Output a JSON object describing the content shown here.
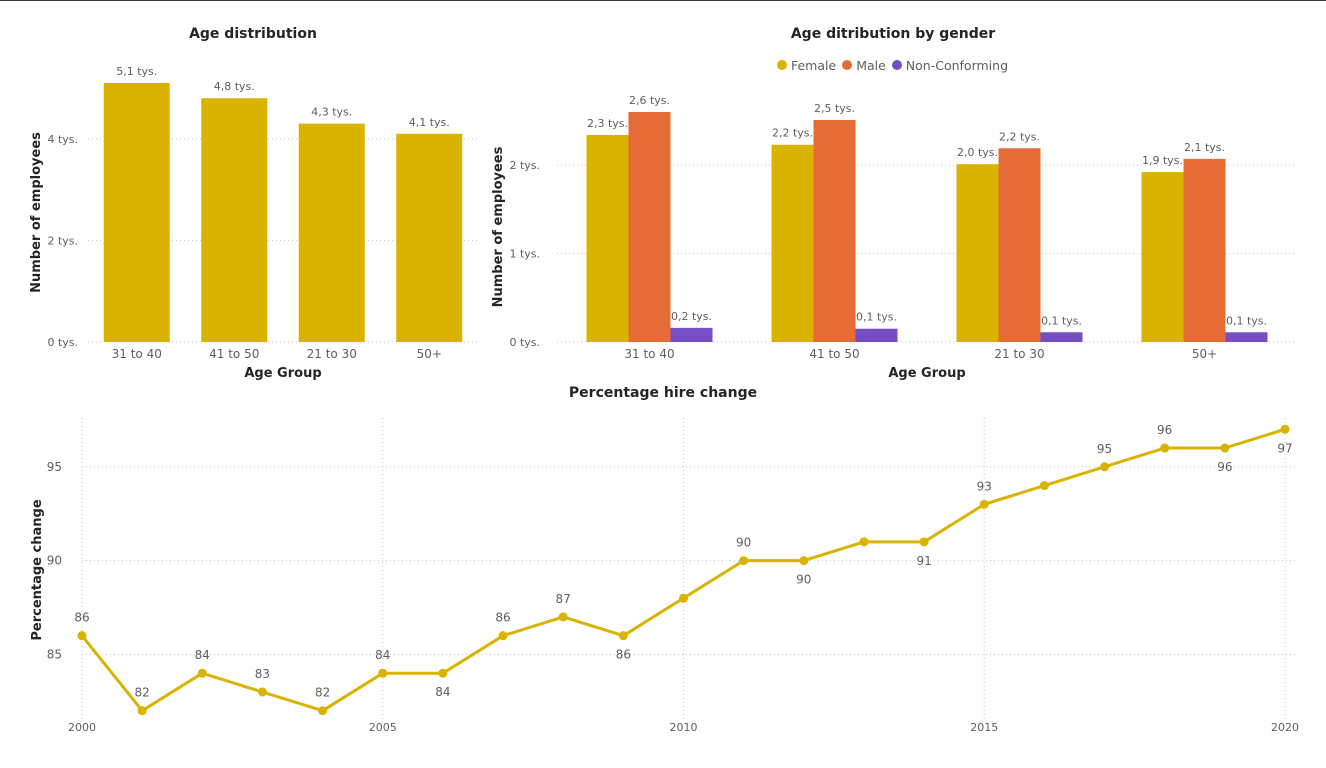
{
  "chart_data": [
    {
      "type": "bar",
      "title": "Age distribution",
      "xlabel": "Age Group",
      "ylabel": "Number of employees",
      "categories": [
        "31 to 40",
        "41 to 50",
        "21 to 30",
        "50+"
      ],
      "values": [
        5.1,
        4.8,
        4.3,
        4.1
      ],
      "value_labels": [
        "5,1 tys.",
        "4,8 tys.",
        "4,3 tys.",
        "4,1 tys."
      ],
      "ylim": [
        0,
        5.1
      ],
      "yticks": [
        0,
        2,
        4
      ],
      "ytick_labels": [
        "0 tys.",
        "2 tys.",
        "4 tys."
      ],
      "grid": true,
      "color": "#D9B300"
    },
    {
      "type": "bar",
      "title": "Age ditribution by gender",
      "xlabel": "Age Group",
      "ylabel": "Number of employees",
      "categories": [
        "31 to 40",
        "41 to 50",
        "21 to 30",
        "50+"
      ],
      "series": [
        {
          "name": "Female",
          "color": "#D9B300",
          "values": [
            2.34,
            2.23,
            2.01,
            1.92
          ],
          "labels": [
            "2,3 tys.",
            "2,2 tys.",
            "2,0 tys.",
            "1,9 tys."
          ]
        },
        {
          "name": "Male",
          "color": "#E66C37",
          "values": [
            2.6,
            2.51,
            2.19,
            2.07
          ],
          "labels": [
            "2,6 tys.",
            "2,5 tys.",
            "2,2 tys.",
            "2,1 tys."
          ]
        },
        {
          "name": "Non-Conforming",
          "color": "#744EC2",
          "values": [
            0.16,
            0.15,
            0.11,
            0.11
          ],
          "labels": [
            "0,2 tys.",
            "0,1 tys.",
            "0,1 tys.",
            "0,1 tys."
          ]
        }
      ],
      "ylim": [
        0,
        2.6
      ],
      "yticks": [
        0,
        1,
        2
      ],
      "ytick_labels": [
        "0 tys.",
        "1 tys.",
        "2 tys."
      ],
      "legend": "top-center",
      "grid": true
    },
    {
      "type": "line",
      "title": "Percentage hire change",
      "xlabel": "",
      "ylabel": "Percentage change",
      "x": [
        2000,
        2001,
        2002,
        2003,
        2004,
        2005,
        2006,
        2007,
        2008,
        2009,
        2010,
        2011,
        2012,
        2013,
        2014,
        2015,
        2016,
        2017,
        2018,
        2019,
        2020
      ],
      "y": [
        86,
        82,
        84,
        83,
        82,
        84,
        84,
        86,
        87,
        86,
        88,
        90,
        90,
        91,
        91,
        93,
        94,
        95,
        96,
        96,
        97
      ],
      "point_labels": [
        {
          "x": 2000,
          "text": "86",
          "pos": "above"
        },
        {
          "x": 2001,
          "text": "82",
          "pos": "above"
        },
        {
          "x": 2002,
          "text": "84",
          "pos": "above"
        },
        {
          "x": 2003,
          "text": "83",
          "pos": "above"
        },
        {
          "x": 2004,
          "text": "82",
          "pos": "above"
        },
        {
          "x": 2005,
          "text": "84",
          "pos": "above"
        },
        {
          "x": 2006,
          "text": "84",
          "pos": "below"
        },
        {
          "x": 2007,
          "text": "86",
          "pos": "above"
        },
        {
          "x": 2008,
          "text": "87",
          "pos": "above"
        },
        {
          "x": 2009,
          "text": "86",
          "pos": "below"
        },
        {
          "x": 2011,
          "text": "90",
          "pos": "above"
        },
        {
          "x": 2012,
          "text": "90",
          "pos": "below"
        },
        {
          "x": 2014,
          "text": "91",
          "pos": "below"
        },
        {
          "x": 2015,
          "text": "93",
          "pos": "above"
        },
        {
          "x": 2017,
          "text": "95",
          "pos": "above"
        },
        {
          "x": 2018,
          "text": "96",
          "pos": "above"
        },
        {
          "x": 2019,
          "text": "96",
          "pos": "below"
        },
        {
          "x": 2020,
          "text": "97",
          "pos": "below"
        }
      ],
      "xlim": [
        2000,
        2020
      ],
      "ylim": [
        81.4,
        97.6
      ],
      "xticks": [
        2000,
        2005,
        2010,
        2015,
        2020
      ],
      "yticks": [
        85,
        90,
        95
      ],
      "grid": true,
      "color": "#D9B300"
    }
  ]
}
